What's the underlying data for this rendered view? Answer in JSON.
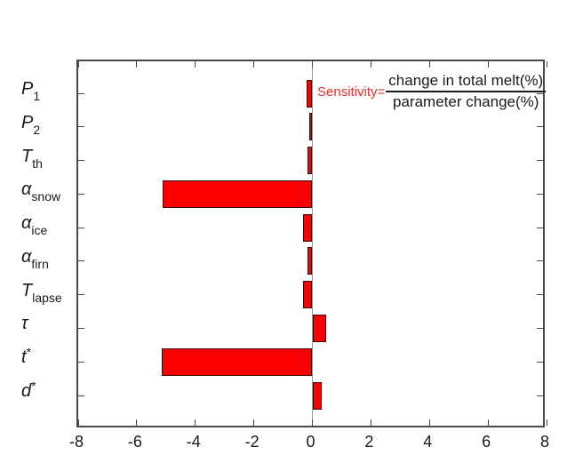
{
  "figure": {
    "background": "#ffffff",
    "axis_color": "#4a4a4a",
    "zero_line_color": "#999999",
    "tick_label_color": "#1a1a1a"
  },
  "chart_data": {
    "type": "bar",
    "orientation": "horizontal",
    "title": "",
    "xlabel": "",
    "ylabel": "",
    "xlim": [
      -8,
      8
    ],
    "grid": false,
    "legend": null,
    "bar_fill": "#fa0000",
    "bar_edge": "#3a0a08",
    "xticks": [
      {
        "value": -8,
        "label": "-8"
      },
      {
        "value": -6,
        "label": "-6"
      },
      {
        "value": -4,
        "label": "-4"
      },
      {
        "value": -2,
        "label": "-2"
      },
      {
        "value": 0,
        "label": "0"
      },
      {
        "value": 2,
        "label": "2"
      },
      {
        "value": 4,
        "label": "4"
      },
      {
        "value": 6,
        "label": "6"
      },
      {
        "value": 8,
        "label": "8"
      }
    ],
    "categories": [
      {
        "id": "P1",
        "base": "P",
        "script": "1",
        "script_pos": "sub",
        "value": -0.21
      },
      {
        "id": "P2",
        "base": "P",
        "script": "2",
        "script_pos": "sub",
        "value": -0.12
      },
      {
        "id": "T-th",
        "base": "T",
        "script": "th",
        "script_pos": "sub",
        "value": -0.18
      },
      {
        "id": "alpha-snow",
        "base": "α",
        "script": "snow",
        "script_pos": "sub",
        "value": -5.13
      },
      {
        "id": "alpha-ice",
        "base": "α",
        "script": "ice",
        "script_pos": "sub",
        "value": -0.33
      },
      {
        "id": "alpha-firn",
        "base": "α",
        "script": "firn",
        "script_pos": "sub",
        "value": -0.18
      },
      {
        "id": "T-lapse",
        "base": "T",
        "script": "lapse",
        "script_pos": "sub",
        "value": -0.33
      },
      {
        "id": "tau",
        "base": "τ",
        "script": "",
        "script_pos": "",
        "value": 0.48
      },
      {
        "id": "t-star",
        "base": "t",
        "script": "*",
        "script_pos": "sup",
        "value": -5.15
      },
      {
        "id": "d-star",
        "base": "d",
        "script": "*",
        "script_pos": "sup",
        "value": 0.33
      }
    ]
  },
  "annotation": {
    "label": "Sensitivity",
    "equals": "=",
    "numerator": "change in total melt(%)",
    "denominator": "parameter change(%)",
    "label_color": "#e8312a",
    "fraction_color": "#1a1a1a"
  }
}
